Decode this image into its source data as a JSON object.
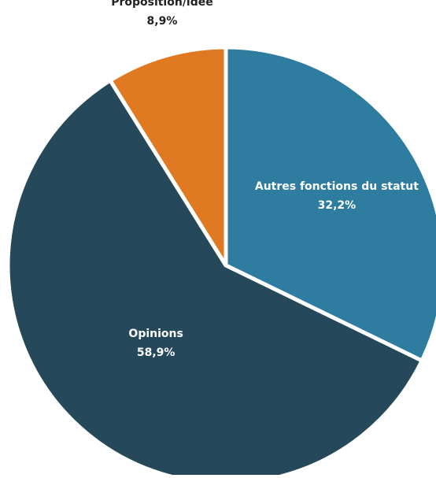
{
  "chart_data": {
    "type": "pie",
    "categories": [
      "Autres fonctions du statut",
      "Opinions",
      "Proposition/idée"
    ],
    "values": [
      32.2,
      58.9,
      8.9
    ],
    "value_labels": [
      "32,2%",
      "58,9%",
      "8,9%"
    ],
    "colors": [
      "#2e7ca0",
      "#25495a",
      "#e07a22"
    ],
    "label_colors": [
      "#ffffff",
      "#ffffff",
      "#222222"
    ]
  }
}
